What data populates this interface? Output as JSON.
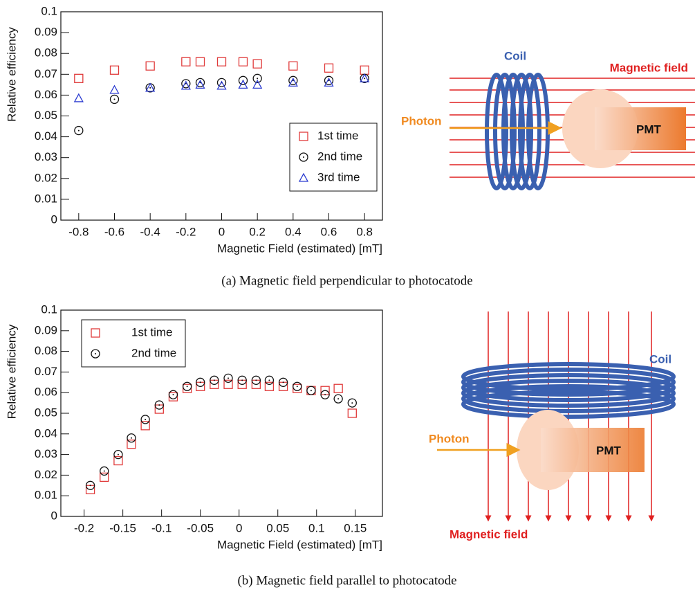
{
  "chart_data": [
    {
      "type": "scatter",
      "x_label": "Magnetic Field (estimated) [mT]",
      "y_label": "Relative efficiency",
      "xlim": [
        -0.9,
        0.9
      ],
      "ylim": [
        0,
        0.1
      ],
      "xticks": [
        -0.8,
        -0.6,
        -0.4,
        -0.2,
        0,
        0.2,
        0.4,
        0.6,
        0.8
      ],
      "yticks": [
        0,
        0.01,
        0.02,
        0.03,
        0.04,
        0.05,
        0.06,
        0.07,
        0.08,
        0.09,
        0.1
      ],
      "legend": "lower right",
      "x": [
        -0.8,
        -0.6,
        -0.4,
        -0.2,
        -0.12,
        0,
        0.12,
        0.2,
        0.4,
        0.6,
        0.8
      ],
      "series": [
        {
          "name": "1st time",
          "color": "#e03a3a",
          "marker": "square",
          "values": [
            0.068,
            0.072,
            0.074,
            0.076,
            0.076,
            0.076,
            0.076,
            0.075,
            0.074,
            0.073,
            0.072
          ]
        },
        {
          "name": "2nd time",
          "color": "#111111",
          "marker": "circle",
          "values": [
            0.043,
            0.058,
            0.0635,
            0.0655,
            0.066,
            0.066,
            0.067,
            0.068,
            0.067,
            0.067,
            0.068
          ]
        },
        {
          "name": "3rd time",
          "color": "#2a3ad0",
          "marker": "triangle",
          "values": [
            0.0585,
            0.0625,
            0.0635,
            0.0645,
            0.065,
            0.0645,
            0.065,
            0.065,
            0.066,
            0.066,
            0.068
          ]
        }
      ]
    },
    {
      "type": "scatter",
      "x_label": "Magnetic Field (estimated) [mT]",
      "y_label": "Relative efficiency",
      "xlim": [
        -0.23,
        0.185
      ],
      "ylim": [
        0,
        0.1
      ],
      "xticks": [
        -0.2,
        -0.15,
        -0.1,
        -0.05,
        0,
        0.05,
        0.1,
        0.15
      ],
      "yticks": [
        0,
        0.01,
        0.02,
        0.03,
        0.04,
        0.05,
        0.06,
        0.07,
        0.08,
        0.09,
        0.1
      ],
      "legend": "upper left",
      "x": [
        -0.192,
        -0.174,
        -0.156,
        -0.139,
        -0.121,
        -0.103,
        -0.085,
        -0.067,
        -0.05,
        -0.032,
        -0.014,
        0.004,
        0.022,
        0.039,
        0.057,
        0.075,
        0.093,
        0.111,
        0.128,
        0.146
      ],
      "series": [
        {
          "name": "1st time",
          "color": "#e03a3a",
          "marker": "square",
          "values": [
            0.013,
            0.019,
            0.027,
            0.035,
            0.044,
            0.052,
            0.058,
            0.062,
            0.063,
            0.064,
            0.064,
            0.064,
            0.064,
            0.063,
            0.063,
            0.062,
            0.061,
            0.061,
            0.062,
            0.05
          ]
        },
        {
          "name": "2nd time",
          "color": "#111111",
          "marker": "circle",
          "values": [
            0.015,
            0.022,
            0.03,
            0.038,
            0.047,
            0.054,
            0.059,
            0.063,
            0.065,
            0.066,
            0.067,
            0.066,
            0.066,
            0.066,
            0.065,
            0.063,
            0.061,
            0.059,
            0.057,
            0.055
          ]
        }
      ]
    }
  ],
  "diagrams": [
    {
      "coil": "Coil",
      "field": "Magnetic field",
      "photon": "Photon",
      "pmt": "PMT"
    },
    {
      "coil": "Coil",
      "field": "Magnetic field",
      "photon": "Photon",
      "pmt": "PMT"
    }
  ],
  "captions": [
    "(a)  Magnetic field perpendicular to photocatode",
    "(b)  Magnetic field parallel to photocatode"
  ]
}
